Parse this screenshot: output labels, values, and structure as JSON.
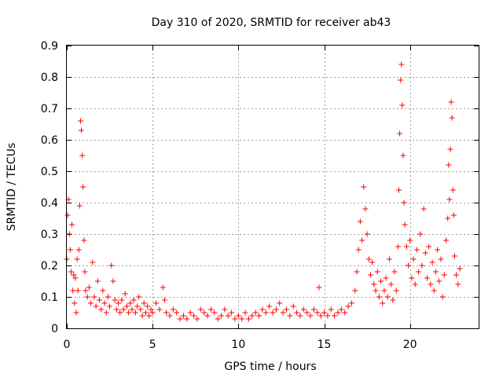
{
  "chart_data": {
    "type": "scatter",
    "title": "Day 310 of 2020, SRMTID for receiver ab43",
    "xlabel": "GPS time / hours",
    "ylabel": "SRMTID / TECUs",
    "xlim": [
      0,
      24
    ],
    "ylim": [
      0,
      0.9
    ],
    "x_ticks": [
      0,
      5,
      10,
      15,
      20
    ],
    "y_ticks": [
      0,
      0.1,
      0.2,
      0.3,
      0.4,
      0.5,
      0.6,
      0.7,
      0.8,
      0.9
    ],
    "x_tick_labels": [
      "0",
      "5",
      "10",
      "15",
      "20"
    ],
    "y_tick_labels": [
      "0",
      "0.1",
      "0.2",
      "0.3",
      "0.4",
      "0.5",
      "0.6",
      "0.7",
      "0.8",
      "0.9"
    ],
    "grid": true,
    "marker": "+",
    "color": "#ff0000",
    "series": [
      {
        "name": "SRMTID",
        "points": [
          [
            0.0,
            0.22
          ],
          [
            0.05,
            0.36
          ],
          [
            0.1,
            0.41
          ],
          [
            0.15,
            0.3
          ],
          [
            0.2,
            0.25
          ],
          [
            0.25,
            0.18
          ],
          [
            0.3,
            0.33
          ],
          [
            0.35,
            0.12
          ],
          [
            0.4,
            0.17
          ],
          [
            0.45,
            0.08
          ],
          [
            0.5,
            0.16
          ],
          [
            0.55,
            0.05
          ],
          [
            0.6,
            0.22
          ],
          [
            0.65,
            0.12
          ],
          [
            0.7,
            0.25
          ],
          [
            0.75,
            0.39
          ],
          [
            0.8,
            0.66
          ],
          [
            0.85,
            0.63
          ],
          [
            0.9,
            0.55
          ],
          [
            0.95,
            0.45
          ],
          [
            1.0,
            0.28
          ],
          [
            1.05,
            0.18
          ],
          [
            1.1,
            0.12
          ],
          [
            1.2,
            0.1
          ],
          [
            1.3,
            0.13
          ],
          [
            1.4,
            0.08
          ],
          [
            1.5,
            0.21
          ],
          [
            1.6,
            0.1
          ],
          [
            1.7,
            0.07
          ],
          [
            1.8,
            0.15
          ],
          [
            1.9,
            0.09
          ],
          [
            2.0,
            0.06
          ],
          [
            2.1,
            0.12
          ],
          [
            2.2,
            0.08
          ],
          [
            2.3,
            0.05
          ],
          [
            2.4,
            0.1
          ],
          [
            2.5,
            0.07
          ],
          [
            2.6,
            0.2
          ],
          [
            2.7,
            0.15
          ],
          [
            2.8,
            0.09
          ],
          [
            2.9,
            0.06
          ],
          [
            3.0,
            0.08
          ],
          [
            3.1,
            0.05
          ],
          [
            3.2,
            0.09
          ],
          [
            3.3,
            0.06
          ],
          [
            3.4,
            0.11
          ],
          [
            3.5,
            0.07
          ],
          [
            3.6,
            0.05
          ],
          [
            3.7,
            0.08
          ],
          [
            3.8,
            0.06
          ],
          [
            3.9,
            0.09
          ],
          [
            4.0,
            0.05
          ],
          [
            4.1,
            0.07
          ],
          [
            4.2,
            0.1
          ],
          [
            4.3,
            0.06
          ],
          [
            4.4,
            0.04
          ],
          [
            4.5,
            0.08
          ],
          [
            4.6,
            0.05
          ],
          [
            4.7,
            0.07
          ],
          [
            4.8,
            0.04
          ],
          [
            4.9,
            0.06
          ],
          [
            5.0,
            0.05
          ],
          [
            5.2,
            0.08
          ],
          [
            5.4,
            0.06
          ],
          [
            5.6,
            0.13
          ],
          [
            5.7,
            0.09
          ],
          [
            5.8,
            0.05
          ],
          [
            6.0,
            0.04
          ],
          [
            6.2,
            0.06
          ],
          [
            6.4,
            0.05
          ],
          [
            6.6,
            0.03
          ],
          [
            6.8,
            0.04
          ],
          [
            7.0,
            0.03
          ],
          [
            7.2,
            0.05
          ],
          [
            7.4,
            0.04
          ],
          [
            7.6,
            0.03
          ],
          [
            7.8,
            0.06
          ],
          [
            8.0,
            0.05
          ],
          [
            8.2,
            0.04
          ],
          [
            8.4,
            0.06
          ],
          [
            8.6,
            0.05
          ],
          [
            8.8,
            0.03
          ],
          [
            9.0,
            0.04
          ],
          [
            9.2,
            0.06
          ],
          [
            9.4,
            0.04
          ],
          [
            9.6,
            0.05
          ],
          [
            9.8,
            0.03
          ],
          [
            10.0,
            0.04
          ],
          [
            10.2,
            0.03
          ],
          [
            10.4,
            0.05
          ],
          [
            10.6,
            0.03
          ],
          [
            10.8,
            0.04
          ],
          [
            11.0,
            0.05
          ],
          [
            11.2,
            0.04
          ],
          [
            11.4,
            0.06
          ],
          [
            11.6,
            0.05
          ],
          [
            11.8,
            0.07
          ],
          [
            12.0,
            0.05
          ],
          [
            12.2,
            0.06
          ],
          [
            12.4,
            0.08
          ],
          [
            12.6,
            0.05
          ],
          [
            12.8,
            0.06
          ],
          [
            13.0,
            0.04
          ],
          [
            13.2,
            0.07
          ],
          [
            13.4,
            0.05
          ],
          [
            13.6,
            0.04
          ],
          [
            13.8,
            0.06
          ],
          [
            14.0,
            0.05
          ],
          [
            14.2,
            0.04
          ],
          [
            14.4,
            0.06
          ],
          [
            14.6,
            0.05
          ],
          [
            14.7,
            0.13
          ],
          [
            14.8,
            0.04
          ],
          [
            15.0,
            0.05
          ],
          [
            15.2,
            0.04
          ],
          [
            15.4,
            0.06
          ],
          [
            15.6,
            0.04
          ],
          [
            15.8,
            0.05
          ],
          [
            16.0,
            0.06
          ],
          [
            16.2,
            0.05
          ],
          [
            16.4,
            0.07
          ],
          [
            16.6,
            0.08
          ],
          [
            16.8,
            0.12
          ],
          [
            16.9,
            0.18
          ],
          [
            17.0,
            0.25
          ],
          [
            17.1,
            0.34
          ],
          [
            17.2,
            0.28
          ],
          [
            17.3,
            0.45
          ],
          [
            17.4,
            0.38
          ],
          [
            17.5,
            0.3
          ],
          [
            17.6,
            0.22
          ],
          [
            17.7,
            0.17
          ],
          [
            17.8,
            0.21
          ],
          [
            17.9,
            0.14
          ],
          [
            18.0,
            0.12
          ],
          [
            18.1,
            0.18
          ],
          [
            18.2,
            0.1
          ],
          [
            18.3,
            0.15
          ],
          [
            18.4,
            0.08
          ],
          [
            18.5,
            0.12
          ],
          [
            18.6,
            0.16
          ],
          [
            18.7,
            0.1
          ],
          [
            18.8,
            0.22
          ],
          [
            18.9,
            0.14
          ],
          [
            19.0,
            0.09
          ],
          [
            19.1,
            0.18
          ],
          [
            19.2,
            0.12
          ],
          [
            19.3,
            0.26
          ],
          [
            19.35,
            0.44
          ],
          [
            19.4,
            0.62
          ],
          [
            19.45,
            0.79
          ],
          [
            19.5,
            0.84
          ],
          [
            19.55,
            0.71
          ],
          [
            19.6,
            0.55
          ],
          [
            19.65,
            0.4
          ],
          [
            19.7,
            0.33
          ],
          [
            19.8,
            0.26
          ],
          [
            19.9,
            0.2
          ],
          [
            20.0,
            0.28
          ],
          [
            20.1,
            0.16
          ],
          [
            20.2,
            0.22
          ],
          [
            20.3,
            0.14
          ],
          [
            20.4,
            0.25
          ],
          [
            20.5,
            0.18
          ],
          [
            20.6,
            0.3
          ],
          [
            20.7,
            0.2
          ],
          [
            20.8,
            0.38
          ],
          [
            20.9,
            0.24
          ],
          [
            21.0,
            0.16
          ],
          [
            21.1,
            0.26
          ],
          [
            21.2,
            0.14
          ],
          [
            21.3,
            0.21
          ],
          [
            21.4,
            0.12
          ],
          [
            21.5,
            0.18
          ],
          [
            21.6,
            0.25
          ],
          [
            21.7,
            0.15
          ],
          [
            21.8,
            0.22
          ],
          [
            21.9,
            0.1
          ],
          [
            22.0,
            0.17
          ],
          [
            22.1,
            0.28
          ],
          [
            22.2,
            0.35
          ],
          [
            22.25,
            0.52
          ],
          [
            22.3,
            0.41
          ],
          [
            22.35,
            0.57
          ],
          [
            22.4,
            0.72
          ],
          [
            22.45,
            0.67
          ],
          [
            22.5,
            0.44
          ],
          [
            22.55,
            0.36
          ],
          [
            22.6,
            0.23
          ],
          [
            22.7,
            0.17
          ],
          [
            22.8,
            0.14
          ],
          [
            22.9,
            0.19
          ]
        ]
      }
    ]
  }
}
